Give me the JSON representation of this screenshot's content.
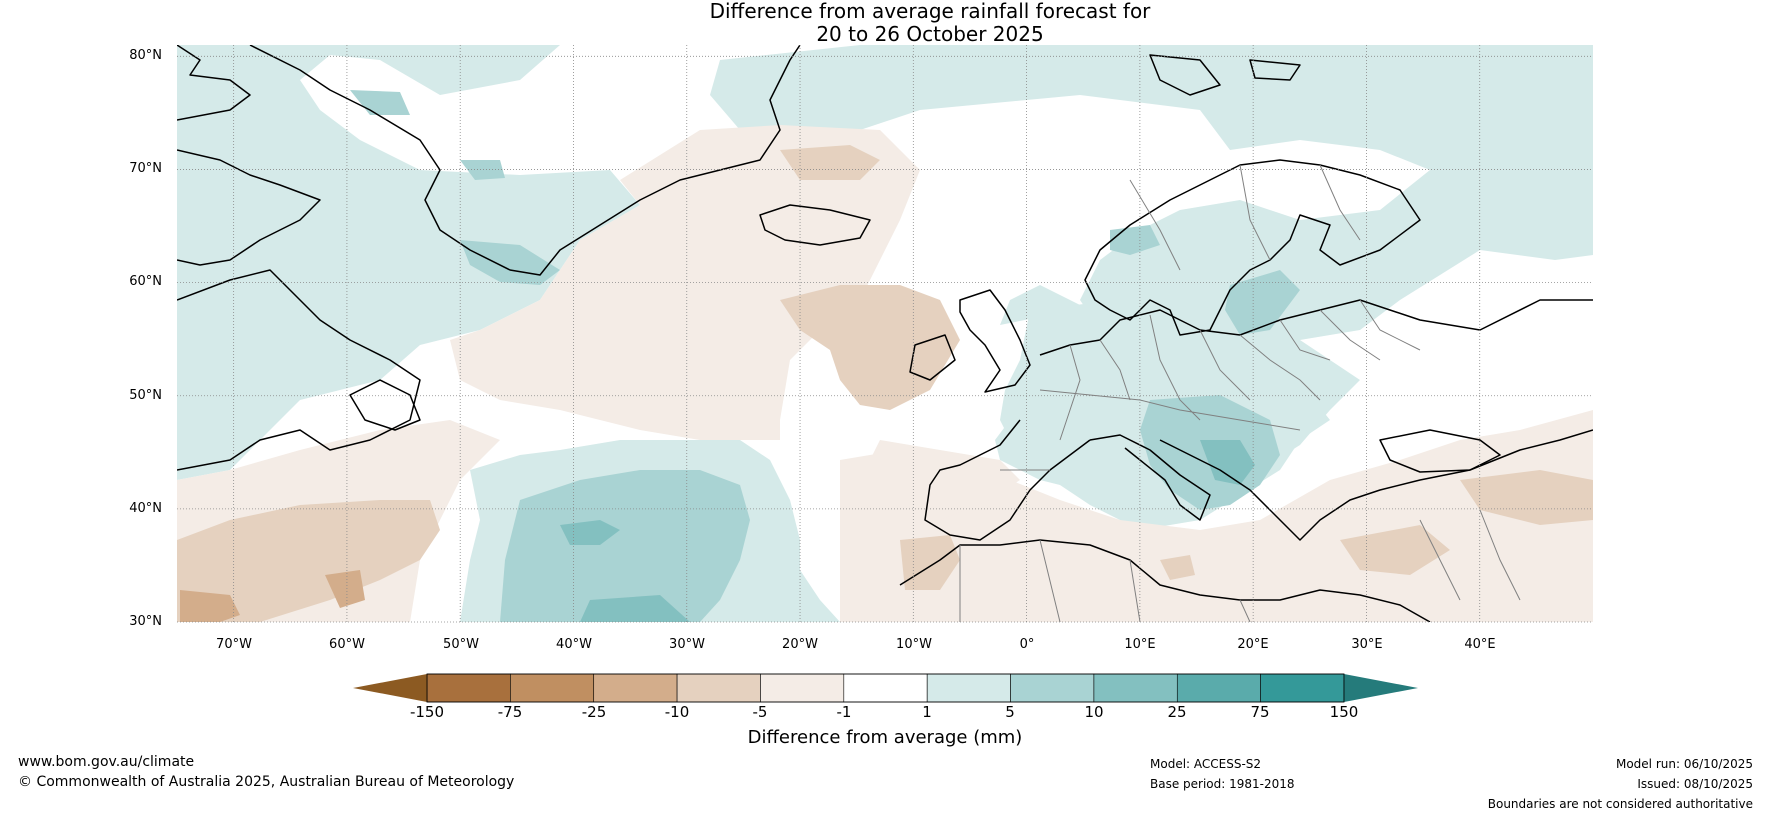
{
  "title": {
    "line1": "Difference from average rainfall forecast for",
    "line2": "20 to 26 October 2025"
  },
  "map": {
    "lat_labels": [
      "80°N",
      "70°N",
      "60°N",
      "50°N",
      "40°N",
      "30°N"
    ],
    "lon_labels": [
      "70°W",
      "60°W",
      "50°W",
      "40°W",
      "30°W",
      "20°W",
      "10°W",
      "0°",
      "10°E",
      "20°E",
      "30°E",
      "40°E"
    ],
    "lon_range_deg": [
      -75,
      50
    ],
    "lat_range_deg": [
      30,
      81
    ]
  },
  "colorbar": {
    "title": "Difference from average (mm)",
    "tick_labels": [
      "-150",
      "-75",
      "-25",
      "-10",
      "-5",
      "-1",
      "1",
      "5",
      "10",
      "25",
      "75",
      "150"
    ],
    "colors": {
      "below_min": "#8c5a22",
      "bins": [
        "#a8703d",
        "#c08f61",
        "#d3ad8b",
        "#e5d1bf",
        "#f4ece6",
        "#ffffff",
        "#d5eae9",
        "#a9d3d3",
        "#83c0c0",
        "#5aabab",
        "#349999"
      ],
      "above_max": "#257b7b"
    }
  },
  "footer": {
    "website": "www.bom.gov.au/climate",
    "copyright": "© Commonwealth of Australia 2025, Australian Bureau of Meteorology",
    "model": "Model: ACCESS-S2",
    "base_period": "Base period: 1981-2018",
    "model_run": "Model run: 06/10/2025",
    "issued": "Issued: 08/10/2025",
    "disclaimer": "Boundaries are not considered authoritative"
  }
}
